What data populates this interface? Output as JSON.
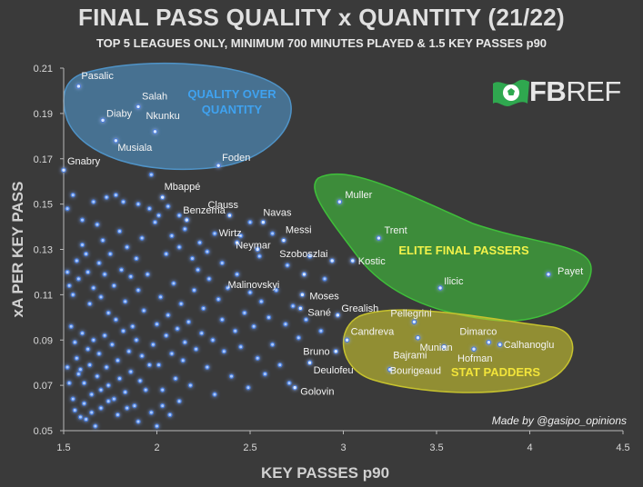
{
  "header": {
    "title": "FINAL PASS QUALITY x QUANTITY (21/22)",
    "subtitle": "TOP 5 LEAGUES ONLY, MINIMUM 700 MINUTES PLAYED & 1.5 KEY PASSES p90"
  },
  "credit": "Made by @gasipo_opinions",
  "logo": {
    "text_bold": "FB",
    "text_thin": "REF",
    "icon": "football-flag-icon"
  },
  "colors": {
    "background": "#3a3a3a",
    "point": "#a9c8ff",
    "point_glow": "#4a7bd6",
    "quality_zone": "#4f93c7",
    "elite_zone": "#3fbf3a",
    "padders_zone": "#c6c22e"
  },
  "chart_data": {
    "type": "scatter",
    "title": "FINAL PASS QUALITY x QUANTITY (21/22)",
    "xlabel": "KEY PASSES p90",
    "ylabel": "xA PER KEY PASS",
    "xlim": [
      1.5,
      4.5
    ],
    "ylim": [
      0.05,
      0.21
    ],
    "xticks": [
      "1.5",
      "2",
      "2.5",
      "3",
      "3.5",
      "4",
      "4.5"
    ],
    "yticks": [
      "0.05",
      "0.07",
      "0.09",
      "0.11",
      "0.13",
      "0.15",
      "0.17",
      "0.19",
      "0.21"
    ],
    "grid": false,
    "zones": [
      {
        "label": "QUALITY OVER QUANTITY",
        "label_lines": [
          "QUALITY OVER",
          "QUANTITY"
        ],
        "color": "#4f93c7"
      },
      {
        "label": "ELITE FINAL PASSERS",
        "label_lines": [
          "ELITE FINAL PASSERS"
        ],
        "color": "#3fbf3a"
      },
      {
        "label": "STAT PADDERS",
        "label_lines": [
          "STAT PADDERS"
        ],
        "color": "#c6c22e"
      }
    ],
    "labeled_points": [
      {
        "name": "Pasalic",
        "x": 1.58,
        "y": 0.202
      },
      {
        "name": "Salah",
        "x": 1.9,
        "y": 0.193
      },
      {
        "name": "Diaby",
        "x": 1.71,
        "y": 0.187
      },
      {
        "name": "Nkunku",
        "x": 1.99,
        "y": 0.182
      },
      {
        "name": "Musiala",
        "x": 1.78,
        "y": 0.178
      },
      {
        "name": "Foden",
        "x": 2.33,
        "y": 0.167
      },
      {
        "name": "Gnabry",
        "x": 1.5,
        "y": 0.165
      },
      {
        "name": "Mbappé",
        "x": 2.03,
        "y": 0.153
      },
      {
        "name": "Benzema",
        "x": 2.16,
        "y": 0.143
      },
      {
        "name": "Clauss",
        "x": 2.39,
        "y": 0.145
      },
      {
        "name": "Navas",
        "x": 2.57,
        "y": 0.142
      },
      {
        "name": "Messi",
        "x": 2.68,
        "y": 0.134
      },
      {
        "name": "Wirtz",
        "x": 2.43,
        "y": 0.133
      },
      {
        "name": "Neymar",
        "x": 2.54,
        "y": 0.13
      },
      {
        "name": "Szoboszlai",
        "x": 2.94,
        "y": 0.125
      },
      {
        "name": "Malinovskyi",
        "x": 2.79,
        "y": 0.119
      },
      {
        "name": "Kostic",
        "x": 3.05,
        "y": 0.125
      },
      {
        "name": "Moses",
        "x": 2.78,
        "y": 0.11
      },
      {
        "name": "Sané",
        "x": 2.77,
        "y": 0.104
      },
      {
        "name": "Grealish",
        "x": 2.97,
        "y": 0.101
      },
      {
        "name": "Muller",
        "x": 2.98,
        "y": 0.151
      },
      {
        "name": "Trent",
        "x": 3.19,
        "y": 0.135
      },
      {
        "name": "Ilicic",
        "x": 3.52,
        "y": 0.113
      },
      {
        "name": "Payet",
        "x": 4.1,
        "y": 0.119
      },
      {
        "name": "Pellegrini",
        "x": 3.38,
        "y": 0.098
      },
      {
        "name": "Candreva",
        "x": 3.02,
        "y": 0.09
      },
      {
        "name": "Munian",
        "x": 3.4,
        "y": 0.091
      },
      {
        "name": "Dimarco",
        "x": 3.78,
        "y": 0.089
      },
      {
        "name": "Calhanoglu",
        "x": 3.84,
        "y": 0.088
      },
      {
        "name": "Bruno",
        "x": 2.96,
        "y": 0.085
      },
      {
        "name": "Bajrami",
        "x": 3.54,
        "y": 0.087
      },
      {
        "name": "Hofman",
        "x": 3.7,
        "y": 0.086
      },
      {
        "name": "Deulofeu",
        "x": 2.82,
        "y": 0.08
      },
      {
        "name": "Bourigeaud",
        "x": 3.25,
        "y": 0.077
      },
      {
        "name": "Golovin",
        "x": 2.74,
        "y": 0.069
      }
    ],
    "points": [
      [
        1.52,
        0.148
      ],
      [
        1.55,
        0.154
      ],
      [
        1.6,
        0.143
      ],
      [
        1.66,
        0.151
      ],
      [
        1.73,
        0.153
      ],
      [
        1.78,
        0.154
      ],
      [
        1.82,
        0.151
      ],
      [
        1.9,
        0.15
      ],
      [
        1.96,
        0.148
      ],
      [
        1.99,
        0.142
      ],
      [
        1.52,
        0.12
      ],
      [
        1.53,
        0.114
      ],
      [
        1.55,
        0.11
      ],
      [
        1.57,
        0.125
      ],
      [
        1.58,
        0.117
      ],
      [
        1.6,
        0.132
      ],
      [
        1.62,
        0.128
      ],
      [
        1.63,
        0.12
      ],
      [
        1.64,
        0.106
      ],
      [
        1.66,
        0.113
      ],
      [
        1.68,
        0.141
      ],
      [
        1.69,
        0.124
      ],
      [
        1.7,
        0.109
      ],
      [
        1.71,
        0.134
      ],
      [
        1.72,
        0.119
      ],
      [
        1.74,
        0.102
      ],
      [
        1.75,
        0.128
      ],
      [
        1.77,
        0.114
      ],
      [
        1.78,
        0.099
      ],
      [
        1.8,
        0.138
      ],
      [
        1.81,
        0.121
      ],
      [
        1.83,
        0.107
      ],
      [
        1.84,
        0.131
      ],
      [
        1.86,
        0.118
      ],
      [
        1.87,
        0.096
      ],
      [
        1.89,
        0.126
      ],
      [
        1.9,
        0.112
      ],
      [
        1.92,
        0.135
      ],
      [
        1.93,
        0.103
      ],
      [
        1.95,
        0.119
      ],
      [
        1.54,
        0.096
      ],
      [
        1.56,
        0.089
      ],
      [
        1.57,
        0.082
      ],
      [
        1.59,
        0.077
      ],
      [
        1.6,
        0.093
      ],
      [
        1.61,
        0.071
      ],
      [
        1.63,
        0.086
      ],
      [
        1.64,
        0.079
      ],
      [
        1.65,
        0.066
      ],
      [
        1.66,
        0.09
      ],
      [
        1.68,
        0.074
      ],
      [
        1.69,
        0.084
      ],
      [
        1.7,
        0.068
      ],
      [
        1.72,
        0.092
      ],
      [
        1.73,
        0.078
      ],
      [
        1.74,
        0.07
      ],
      [
        1.76,
        0.088
      ],
      [
        1.77,
        0.064
      ],
      [
        1.79,
        0.081
      ],
      [
        1.8,
        0.073
      ],
      [
        1.82,
        0.094
      ],
      [
        1.83,
        0.067
      ],
      [
        1.85,
        0.085
      ],
      [
        1.86,
        0.076
      ],
      [
        1.88,
        0.061
      ],
      [
        1.89,
        0.09
      ],
      [
        1.91,
        0.072
      ],
      [
        1.92,
        0.083
      ],
      [
        1.94,
        0.068
      ],
      [
        1.96,
        0.079
      ],
      [
        1.52,
        0.078
      ],
      [
        1.53,
        0.071
      ],
      [
        1.55,
        0.064
      ],
      [
        1.56,
        0.059
      ],
      [
        1.58,
        0.075
      ],
      [
        1.59,
        0.056
      ],
      [
        1.61,
        0.062
      ],
      [
        1.62,
        0.055
      ],
      [
        1.65,
        0.058
      ],
      [
        1.67,
        0.052
      ],
      [
        1.7,
        0.06
      ],
      [
        1.74,
        0.063
      ],
      [
        1.79,
        0.057
      ],
      [
        1.84,
        0.06
      ],
      [
        1.9,
        0.054
      ],
      [
        1.97,
        0.058
      ],
      [
        2.0,
        0.052
      ],
      [
        2.03,
        0.061
      ],
      [
        2.07,
        0.057
      ],
      [
        2.12,
        0.063
      ],
      [
        1.98,
        0.088
      ],
      [
        2.0,
        0.097
      ],
      [
        2.01,
        0.079
      ],
      [
        2.02,
        0.109
      ],
      [
        2.03,
        0.068
      ],
      [
        2.05,
        0.092
      ],
      [
        2.06,
        0.101
      ],
      [
        2.08,
        0.084
      ],
      [
        2.09,
        0.115
      ],
      [
        2.1,
        0.073
      ],
      [
        2.11,
        0.095
      ],
      [
        2.13,
        0.106
      ],
      [
        2.14,
        0.081
      ],
      [
        2.15,
        0.089
      ],
      [
        2.17,
        0.098
      ],
      [
        2.18,
        0.07
      ],
      [
        2.2,
        0.112
      ],
      [
        2.21,
        0.086
      ],
      [
        2.22,
        0.121
      ],
      [
        2.24,
        0.093
      ],
      [
        2.25,
        0.104
      ],
      [
        2.27,
        0.078
      ],
      [
        2.28,
        0.117
      ],
      [
        2.3,
        0.09
      ],
      [
        2.31,
        0.066
      ],
      [
        2.33,
        0.108
      ],
      [
        2.35,
        0.099
      ],
      [
        2.36,
        0.085
      ],
      [
        2.38,
        0.113
      ],
      [
        2.4,
        0.074
      ],
      [
        2.42,
        0.094
      ],
      [
        2.43,
        0.119
      ],
      [
        2.45,
        0.087
      ],
      [
        2.47,
        0.102
      ],
      [
        2.49,
        0.069
      ],
      [
        2.5,
        0.111
      ],
      [
        2.52,
        0.096
      ],
      [
        2.54,
        0.082
      ],
      [
        2.56,
        0.107
      ],
      [
        2.58,
        0.075
      ],
      [
        2.6,
        0.1
      ],
      [
        2.62,
        0.088
      ],
      [
        2.64,
        0.112
      ],
      [
        2.66,
        0.079
      ],
      [
        2.69,
        0.097
      ],
      [
        2.71,
        0.071
      ],
      [
        2.73,
        0.105
      ],
      [
        2.76,
        0.091
      ],
      [
        2.8,
        0.099
      ],
      [
        2.88,
        0.094
      ],
      [
        2.05,
        0.128
      ],
      [
        2.08,
        0.136
      ],
      [
        2.12,
        0.131
      ],
      [
        2.15,
        0.139
      ],
      [
        2.19,
        0.126
      ],
      [
        2.23,
        0.133
      ],
      [
        2.27,
        0.129
      ],
      [
        2.31,
        0.137
      ],
      [
        2.35,
        0.124
      ],
      [
        2.45,
        0.136
      ],
      [
        2.5,
        0.142
      ],
      [
        2.55,
        0.127
      ],
      [
        2.62,
        0.137
      ],
      [
        2.7,
        0.123
      ],
      [
        2.82,
        0.127
      ],
      [
        2.9,
        0.117
      ],
      [
        1.97,
        0.163
      ],
      [
        2.01,
        0.145
      ],
      [
        2.06,
        0.149
      ],
      [
        2.12,
        0.145
      ]
    ]
  }
}
